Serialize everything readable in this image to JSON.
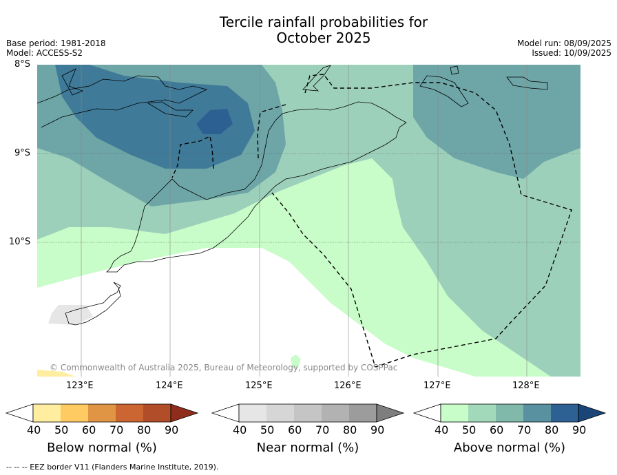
{
  "title_line1": "Tercile rainfall probabilities for",
  "title_line2": "October 2025",
  "meta_left": {
    "base_period": "Base period: 1981-2018",
    "model": "Model: ACCESS-S2"
  },
  "meta_right": {
    "model_run": "Model run: 08/09/2025",
    "issued": "Issued: 10/09/2025"
  },
  "lat_labels": [
    "8°S",
    "9°S",
    "10°S"
  ],
  "lon_labels": [
    "123°E",
    "124°E",
    "125°E",
    "126°E",
    "127°E",
    "128°E"
  ],
  "copyright": "© Commonwealth of Australia 2025, Bureau of Meteorology, supported by COSPPac",
  "colorbars": [
    {
      "label": "Below normal (%)",
      "ticks": [
        "40",
        "50",
        "60",
        "70",
        "80",
        "90"
      ],
      "colors": [
        "#ffeda0",
        "#fecb63",
        "#e09545",
        "#cb6532",
        "#b24d2a",
        "#8e2d1c"
      ]
    },
    {
      "label": "Near normal (%)",
      "ticks": [
        "40",
        "50",
        "60",
        "70",
        "80",
        "90"
      ],
      "colors": [
        "#e6e6e6",
        "#d6d6d6",
        "#c5c5c5",
        "#b2b2b2",
        "#9c9c9c",
        "#7e7e7e"
      ]
    },
    {
      "label": "Above normal (%)",
      "ticks": [
        "40",
        "50",
        "60",
        "70",
        "80",
        "90"
      ],
      "colors": [
        "#c8fcc8",
        "#a3d9bb",
        "#80b8aa",
        "#5a91a0",
        "#2e6193",
        "#1a4577"
      ]
    }
  ],
  "footer": "--  --  -- EEZ border V11 (Flanders Marine Institute, 2019)."
}
